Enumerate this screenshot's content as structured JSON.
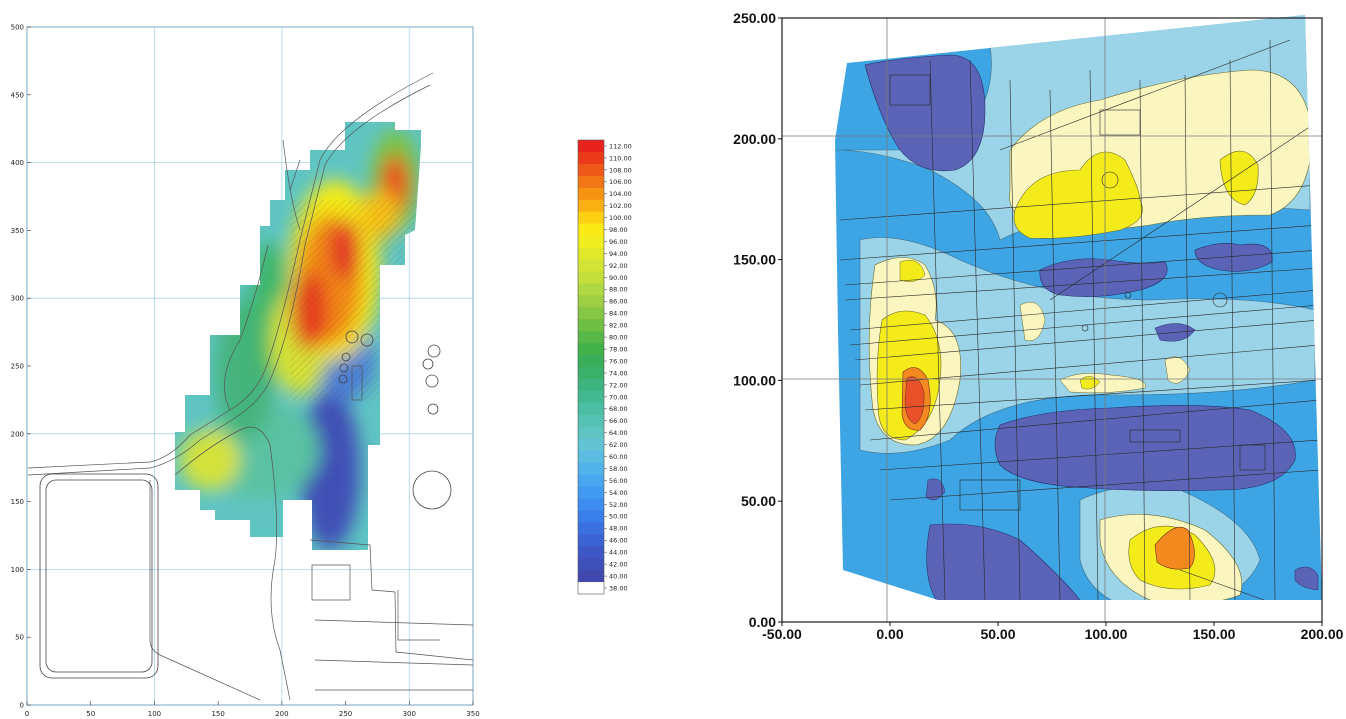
{
  "left_map": {
    "x_ticks": [
      "0",
      "50",
      "100",
      "150",
      "200",
      "250",
      "300",
      "350"
    ],
    "y_ticks": [
      "0",
      "50",
      "100",
      "150",
      "200",
      "250",
      "300",
      "350",
      "400",
      "450",
      "500"
    ],
    "x_range": [
      0,
      350
    ],
    "y_range": [
      0,
      500
    ]
  },
  "legend": {
    "labels": [
      "112.00",
      "110.00",
      "108.00",
      "106.00",
      "104.00",
      "102.00",
      "100.00",
      "98.00",
      "96.00",
      "94.00",
      "92.00",
      "90.00",
      "88.00",
      "86.00",
      "84.00",
      "82.00",
      "80.00",
      "78.00",
      "76.00",
      "74.00",
      "72.00",
      "70.00",
      "68.00",
      "66.00",
      "64.00",
      "62.00",
      "60.00",
      "58.00",
      "56.00",
      "54.00",
      "52.00",
      "50.00",
      "48.00",
      "46.00",
      "44.00",
      "42.00",
      "40.00",
      "38.00"
    ],
    "colors": [
      "#e8221c",
      "#ea3a1a",
      "#ee5718",
      "#f27516",
      "#f69313",
      "#fab012",
      "#fdd012",
      "#fbeb15",
      "#f0ee1e",
      "#e2e92a",
      "#d3e435",
      "#c4df3c",
      "#b0d840",
      "#9ccf43",
      "#86c744",
      "#6fbf45",
      "#58b847",
      "#42b14a",
      "#3aad59",
      "#3ab06b",
      "#3db47e",
      "#42b991",
      "#4bbea3",
      "#55c2b4",
      "#5fc5c3",
      "#62c3d3",
      "#5bbbe0",
      "#52b2ea",
      "#49a7ef",
      "#429af1",
      "#3d8cef",
      "#3a7ee9",
      "#3a70df",
      "#3b63d3",
      "#3d58c6",
      "#3f50ba",
      "#4149ae",
      "#ffffff"
    ]
  },
  "right_map": {
    "x_ticks": [
      "-50.00",
      "0.00",
      "50.00",
      "100.00",
      "150.00",
      "200.00"
    ],
    "y_ticks": [
      "0.00",
      "50.00",
      "100.00",
      "150.00",
      "200.00",
      "250.00"
    ],
    "x_range": [
      -50,
      200
    ],
    "y_range": [
      0,
      250
    ],
    "fill_colors": {
      "dark": "#5a63b5",
      "mid": "#3da5e4",
      "light": "#9bd4e9",
      "cream": "#fbf6bf",
      "yellow": "#f4ec1a",
      "orange": "#f48a1f",
      "red": "#e8512a"
    }
  }
}
